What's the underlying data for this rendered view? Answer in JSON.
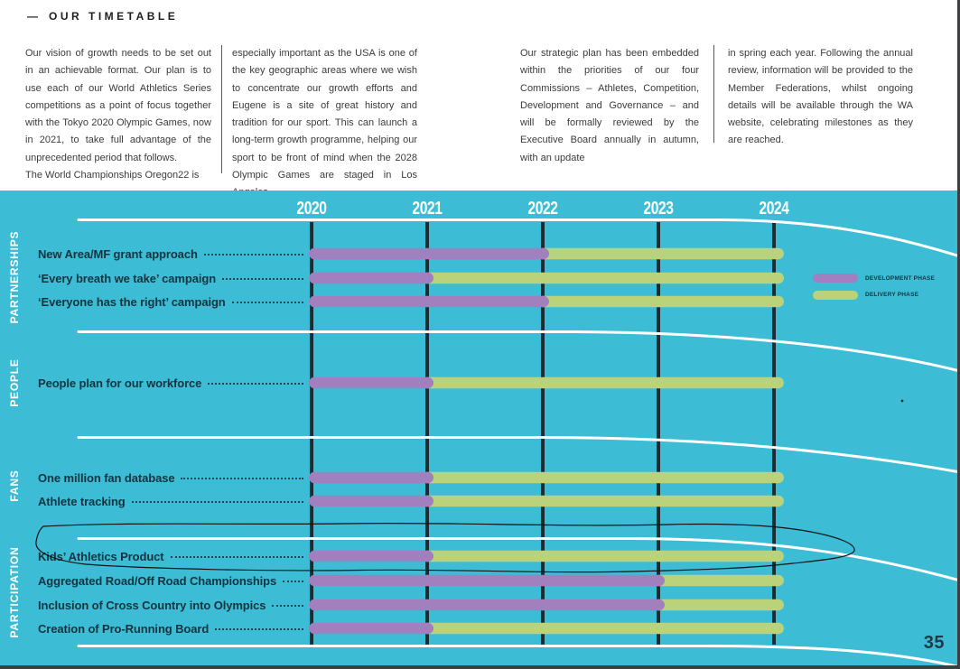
{
  "intro": {
    "dash": "—",
    "title": "OUR TIMETABLE",
    "columns": [
      {
        "paragraphs": [
          "Our vision of growth needs to be set out in an achievable format. Our plan is to use each of our World Athletics Series competitions as a point of focus together with the Tokyo 2020 Olympic Games, now in 2021, to take full advantage of the unprecedented period that follows.",
          "The World Championships Oregon22 is"
        ]
      },
      {
        "paragraphs": [
          "especially important as the USA is one of the key geographic areas where we wish to concentrate our growth efforts and Eugene is a site of great history and tradition for our sport. This can launch a long-term growth programme, helping our sport to be front of mind when the 2028 Olympic Games are staged in Los Angeles."
        ]
      },
      {
        "paragraphs": [
          "Our strategic plan has been embedded within the priorities of our four Commissions – Athletes, Competition, Development and Governance – and will be formally reviewed by the Executive Board annually in autumn, with an update"
        ]
      },
      {
        "paragraphs": [
          "in spring each year. Following the annual review, information will be provided to the Member Federations, whilst ongoing details will be available through the WA website, celebrating milestones as they are reached."
        ]
      }
    ]
  },
  "chart_data": {
    "type": "gantt",
    "years": [
      2020,
      2021,
      2022,
      2023,
      2024
    ],
    "legend": [
      {
        "label": "DEVELOPMENT PHASE",
        "color": "#A27FBF"
      },
      {
        "label": "DELIVERY PHASE",
        "color": "#BAD37B"
      }
    ],
    "groups": [
      {
        "name": "PARTNERSHIPS",
        "rows": [
          {
            "label": "New Area/MF grant approach",
            "development": [
              2020,
              2022
            ],
            "delivery": [
              2022,
              2024
            ]
          },
          {
            "label": "‘Every breath we take’ campaign",
            "development": [
              2020,
              2021
            ],
            "delivery": [
              2021,
              2024
            ]
          },
          {
            "label": "‘Everyone has the right’ campaign",
            "development": [
              2020,
              2022
            ],
            "delivery": [
              2022,
              2024
            ]
          }
        ]
      },
      {
        "name": "PEOPLE",
        "rows": [
          {
            "label": "People plan for our workforce",
            "development": [
              2020,
              2021
            ],
            "delivery": [
              2021,
              2024
            ]
          }
        ]
      },
      {
        "name": "FANS",
        "rows": [
          {
            "label": "One million fan database",
            "development": [
              2020,
              2021
            ],
            "delivery": [
              2021,
              2024
            ]
          },
          {
            "label": "Athlete tracking",
            "development": [
              2020,
              2021
            ],
            "delivery": [
              2021,
              2024
            ]
          }
        ]
      },
      {
        "name": "PARTICIPATION",
        "rows": [
          {
            "label": "Kids’ Athletics Product",
            "development": [
              2020,
              2021
            ],
            "delivery": [
              2021,
              2024
            ],
            "annotation": "hand-drawn circle"
          },
          {
            "label": "Aggregated Road/Off Road Championships",
            "development": [
              2020,
              2023
            ],
            "delivery": [
              2023,
              2024
            ]
          },
          {
            "label": "Inclusion of Cross Country into Olympics",
            "development": [
              2020,
              2023
            ],
            "delivery": [
              2023,
              2024
            ]
          },
          {
            "label": "Creation of Pro-Running Board",
            "development": [
              2020,
              2021
            ],
            "delivery": [
              2021,
              2024
            ]
          }
        ]
      }
    ]
  },
  "footer": {
    "page_number": "35"
  },
  "colors": {
    "teal": "#3CBDD5",
    "development": "#A27FBF",
    "delivery": "#BAD37B",
    "grid": "#1C2B31",
    "label-dark": "#14333F",
    "body-text": "#3B3B3B",
    "page-num": "#1C3A49"
  }
}
